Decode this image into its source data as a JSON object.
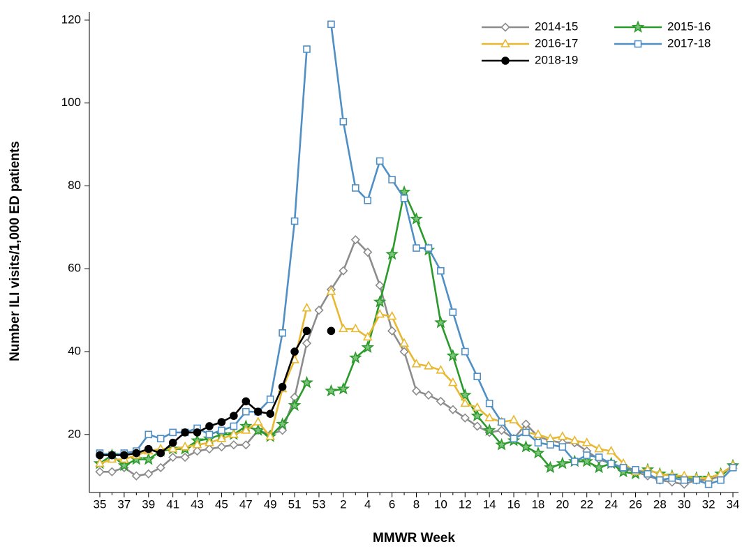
{
  "chart_data": {
    "type": "line",
    "x_label": "MMWR Week",
    "y_label": "Number ILI visits/1,000 ED patients",
    "categories": [
      35,
      null,
      37,
      null,
      39,
      null,
      41,
      null,
      43,
      null,
      45,
      null,
      47,
      null,
      49,
      null,
      51,
      null,
      53,
      null,
      2,
      null,
      4,
      null,
      6,
      null,
      8,
      null,
      10,
      null,
      12,
      null,
      14,
      null,
      16,
      null,
      18,
      null,
      20,
      null,
      22,
      null,
      24,
      null,
      26,
      null,
      28,
      null,
      30,
      null,
      32,
      null,
      34
    ],
    "ylim": [
      6,
      122
    ],
    "yticks": [
      20,
      40,
      60,
      80,
      100,
      120
    ],
    "legend": "upper right",
    "series": [
      {
        "name": "2014-15",
        "color": "#8c8c8c",
        "marker": "diamond",
        "values": [
          11,
          11,
          12,
          10,
          10.5,
          12,
          14.5,
          14.5,
          16,
          16.5,
          17,
          17.5,
          17.5,
          21,
          20,
          21,
          29,
          42,
          50,
          55,
          59.5,
          67,
          64,
          56,
          45,
          40,
          30.5,
          29.5,
          28,
          26,
          24,
          22,
          20.5,
          21,
          19,
          22.5,
          19.5,
          18.5,
          18,
          18,
          16,
          14,
          13,
          12,
          11,
          10,
          9,
          8.5,
          8,
          9,
          9,
          10,
          12.5
        ]
      },
      {
        "name": "2015-16",
        "color": "#2a9a2a",
        "marker": "star",
        "values": [
          13,
          15,
          12.5,
          14,
          14,
          16,
          16.5,
          16.5,
          18.5,
          19,
          20,
          20,
          22,
          21,
          19.5,
          22.5,
          27,
          32.5,
          null,
          30.5,
          31,
          38.5,
          41,
          52,
          63.5,
          78.5,
          72,
          64.5,
          47,
          39,
          29.5,
          24.5,
          21,
          17.5,
          18.5,
          17,
          15.5,
          12,
          13,
          13.5,
          13.5,
          12,
          13,
          11,
          10.5,
          11.5,
          10.5,
          10,
          9.5,
          9.5,
          9.5,
          10.5,
          12.5
        ]
      },
      {
        "name": "2016-17",
        "color": "#e8b830",
        "marker": "triangle",
        "values": [
          13,
          14,
          14,
          15,
          16,
          16.5,
          16.5,
          17,
          17.5,
          18,
          19,
          20,
          21,
          23,
          19.5,
          31,
          38,
          50.5,
          null,
          54.5,
          45.5,
          45.5,
          43.5,
          49,
          48.5,
          42,
          37,
          36.5,
          35.5,
          32.5,
          27.5,
          26.5,
          24,
          23,
          23.5,
          20.5,
          20,
          19,
          19.5,
          18.5,
          18,
          16.5,
          16,
          13,
          11,
          11.5,
          10.5,
          10,
          10,
          9.5,
          9.5,
          10.5,
          12.5
        ]
      },
      {
        "name": "2017-18",
        "color": "#4f8fc4",
        "marker": "square",
        "values": [
          15.5,
          15,
          15.5,
          16,
          20,
          19,
          20.5,
          20.5,
          21.5,
          20,
          21,
          22,
          25.5,
          25.5,
          28.5,
          44.5,
          71.5,
          113,
          null,
          119,
          95.5,
          79.5,
          76.5,
          86,
          81.5,
          77,
          65,
          65,
          59.5,
          49.5,
          40,
          34,
          27.5,
          23,
          19,
          20.5,
          18,
          17.5,
          17,
          13.5,
          15,
          14.5,
          13,
          12,
          11.5,
          10.5,
          9,
          9.5,
          9,
          9,
          8,
          9,
          12
        ]
      },
      {
        "name": "2018-19",
        "color": "#000000",
        "marker": "circle",
        "values": [
          15,
          15,
          15,
          15.5,
          16.5,
          15.5,
          18,
          20.5,
          20.5,
          22,
          23,
          24.5,
          28,
          25.5,
          25,
          31.5,
          40,
          45,
          null,
          45,
          null,
          null,
          null,
          null,
          null,
          null,
          null,
          null,
          null,
          null,
          null,
          null,
          null,
          null,
          null,
          null,
          null,
          null,
          null,
          null,
          null,
          null,
          null,
          null,
          null,
          null,
          null,
          null,
          null,
          null,
          null,
          null,
          null
        ]
      }
    ]
  }
}
